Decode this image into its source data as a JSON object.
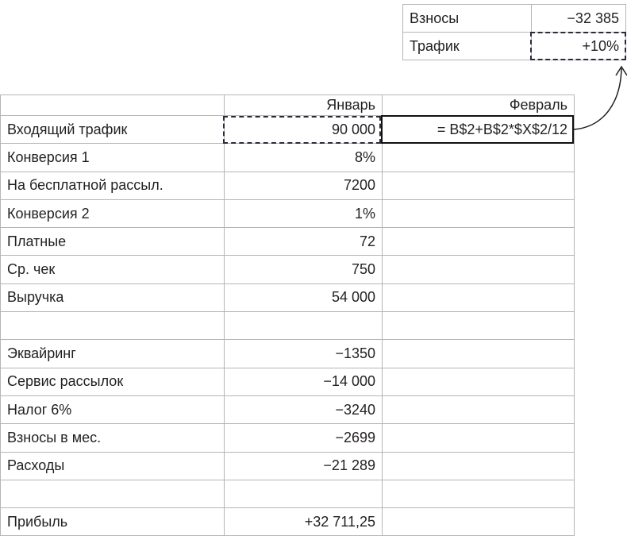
{
  "side_table": [
    {
      "label": "Взносы",
      "value": "−32 385"
    },
    {
      "label": "Трафик",
      "value": "+10%"
    }
  ],
  "main_table": {
    "headers": [
      "",
      "Январь",
      "Февраль"
    ],
    "rows": [
      {
        "label": "Входящий трафик",
        "jan": "90 000",
        "feb": "= B$2+B$2*$X$2/12"
      },
      {
        "label": "Конверсия 1",
        "jan": "8%",
        "feb": ""
      },
      {
        "label": "На бесплатной рассыл.",
        "jan": "7200",
        "feb": ""
      },
      {
        "label": "Конверсия 2",
        "jan": "1%",
        "feb": ""
      },
      {
        "label": "Платные",
        "jan": "72",
        "feb": ""
      },
      {
        "label": "Ср. чек",
        "jan": "750",
        "feb": ""
      },
      {
        "label": "Выручка",
        "jan": "54 000",
        "feb": ""
      },
      {
        "label": "",
        "jan": "",
        "feb": ""
      },
      {
        "label": "Эквайринг",
        "jan": "−1350",
        "feb": ""
      },
      {
        "label": "Сервис рассылок",
        "jan": "−14 000",
        "feb": ""
      },
      {
        "label": "Налог 6%",
        "jan": "−3240",
        "feb": ""
      },
      {
        "label": "Взносы в мес.",
        "jan": "−2699",
        "feb": ""
      },
      {
        "label": "Расходы",
        "jan": "−21 289",
        "feb": ""
      },
      {
        "label": "",
        "jan": "",
        "feb": ""
      },
      {
        "label": "Прибыль",
        "jan": "+32 711,25",
        "feb": ""
      }
    ]
  }
}
